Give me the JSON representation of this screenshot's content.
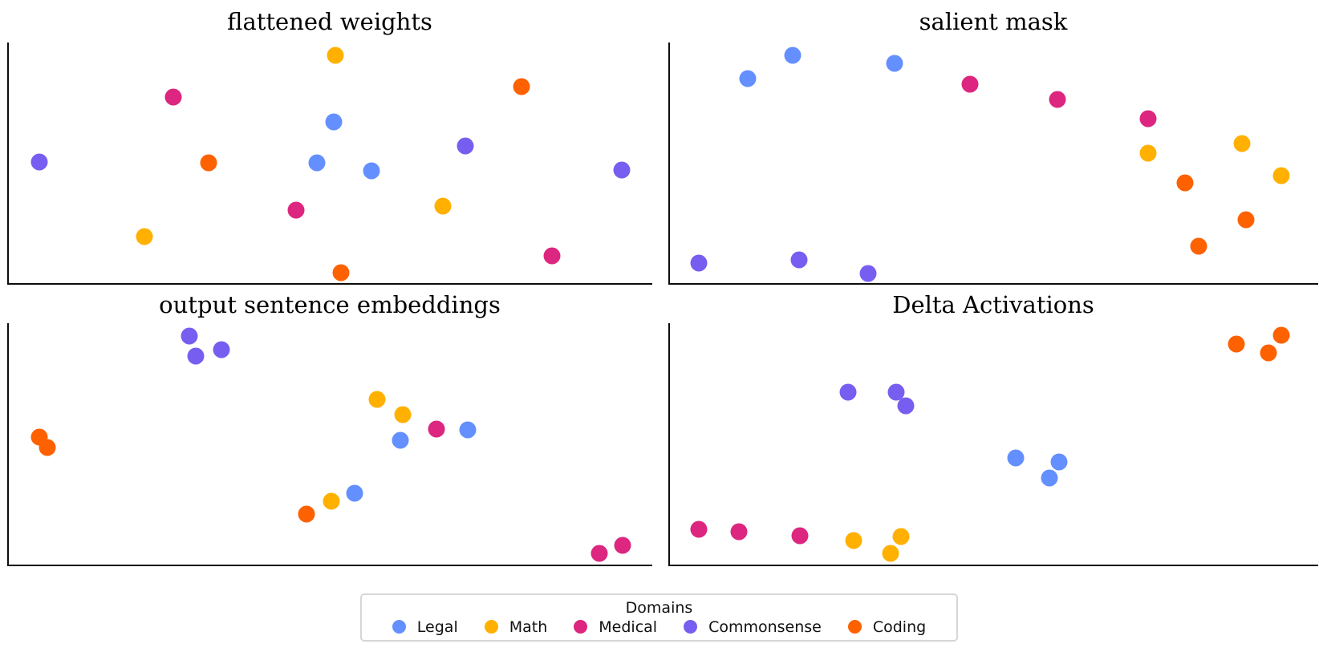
{
  "legend": {
    "title": "Domains",
    "items": [
      {
        "label": "Legal",
        "color": "#648FFF"
      },
      {
        "label": "Math",
        "color": "#FFB000"
      },
      {
        "label": "Medical",
        "color": "#DC267F"
      },
      {
        "label": "Commonsense",
        "color": "#785EF0"
      },
      {
        "label": "Coding",
        "color": "#FE6100"
      }
    ]
  },
  "chart_data": [
    {
      "type": "scatter",
      "title": "flattened weights",
      "axes": {
        "x_ticks": "none",
        "y_ticks": "none",
        "spines": [
          "left",
          "bottom"
        ],
        "grid": false,
        "units": "fraction of plot area; x rightward, y downward from top-left"
      },
      "series": [
        {
          "name": "Legal",
          "color": "#648FFF",
          "points": [
            [
              0.505,
              0.331
            ],
            [
              0.479,
              0.5
            ],
            [
              0.563,
              0.533
            ]
          ]
        },
        {
          "name": "Math",
          "color": "#FFB000",
          "points": [
            [
              0.507,
              0.053
            ],
            [
              0.674,
              0.679
            ],
            [
              0.211,
              0.808
            ]
          ]
        },
        {
          "name": "Medical",
          "color": "#DC267F",
          "points": [
            [
              0.255,
              0.228
            ],
            [
              0.447,
              0.695
            ],
            [
              0.844,
              0.887
            ]
          ]
        },
        {
          "name": "Commonsense",
          "color": "#785EF0",
          "points": [
            [
              0.709,
              0.43
            ],
            [
              0.047,
              0.497
            ],
            [
              0.953,
              0.53
            ]
          ]
        },
        {
          "name": "Coding",
          "color": "#FE6100",
          "points": [
            [
              0.797,
              0.182
            ],
            [
              0.311,
              0.5
            ],
            [
              0.516,
              0.957
            ]
          ]
        }
      ]
    },
    {
      "type": "scatter",
      "title": "salient mask",
      "axes": {
        "x_ticks": "none",
        "y_ticks": "none",
        "spines": [
          "left",
          "bottom"
        ],
        "grid": false,
        "units": "fraction of plot area; x rightward, y downward from top-left"
      },
      "series": [
        {
          "name": "Legal",
          "color": "#648FFF",
          "points": [
            [
              0.189,
              0.053
            ],
            [
              0.12,
              0.149
            ],
            [
              0.347,
              0.086
            ]
          ]
        },
        {
          "name": "Math",
          "color": "#FFB000",
          "points": [
            [
              0.738,
              0.46
            ],
            [
              0.883,
              0.421
            ],
            [
              0.943,
              0.553
            ]
          ]
        },
        {
          "name": "Medical",
          "color": "#DC267F",
          "points": [
            [
              0.463,
              0.172
            ],
            [
              0.598,
              0.235
            ],
            [
              0.738,
              0.315
            ]
          ]
        },
        {
          "name": "Commonsense",
          "color": "#785EF0",
          "points": [
            [
              0.044,
              0.917
            ],
            [
              0.199,
              0.904
            ],
            [
              0.306,
              0.96
            ]
          ]
        },
        {
          "name": "Coding",
          "color": "#FE6100",
          "points": [
            [
              0.795,
              0.583
            ],
            [
              0.889,
              0.735
            ],
            [
              0.816,
              0.848
            ]
          ]
        }
      ]
    },
    {
      "type": "scatter",
      "title": "output sentence embeddings",
      "axes": {
        "x_ticks": "none",
        "y_ticks": "none",
        "spines": [
          "left",
          "bottom"
        ],
        "grid": false,
        "units": "fraction of plot area; x rightward, y downward from top-left"
      },
      "series": [
        {
          "name": "Legal",
          "color": "#648FFF",
          "points": [
            [
              0.713,
              0.442
            ],
            [
              0.609,
              0.485
            ],
            [
              0.537,
              0.703
            ]
          ]
        },
        {
          "name": "Math",
          "color": "#FFB000",
          "points": [
            [
              0.572,
              0.317
            ],
            [
              0.612,
              0.38
            ],
            [
              0.501,
              0.739
            ]
          ]
        },
        {
          "name": "Medical",
          "color": "#DC267F",
          "points": [
            [
              0.664,
              0.439
            ],
            [
              0.918,
              0.954
            ],
            [
              0.954,
              0.921
            ]
          ]
        },
        {
          "name": "Commonsense",
          "color": "#785EF0",
          "points": [
            [
              0.28,
              0.053
            ],
            [
              0.291,
              0.135
            ],
            [
              0.331,
              0.109
            ]
          ]
        },
        {
          "name": "Coding",
          "color": "#FE6100",
          "points": [
            [
              0.047,
              0.472
            ],
            [
              0.06,
              0.515
            ],
            [
              0.463,
              0.792
            ]
          ]
        }
      ]
    },
    {
      "type": "scatter",
      "title": "Delta Activations",
      "axes": {
        "x_ticks": "none",
        "y_ticks": "none",
        "spines": [
          "left",
          "bottom"
        ],
        "grid": false,
        "units": "fraction of plot area; x rightward, y downward from top-left"
      },
      "series": [
        {
          "name": "Legal",
          "color": "#648FFF",
          "points": [
            [
              0.533,
              0.558
            ],
            [
              0.6,
              0.574
            ],
            [
              0.586,
              0.64
            ]
          ]
        },
        {
          "name": "Math",
          "color": "#FFB000",
          "points": [
            [
              0.284,
              0.901
            ],
            [
              0.356,
              0.885
            ],
            [
              0.34,
              0.954
            ]
          ]
        },
        {
          "name": "Medical",
          "color": "#DC267F",
          "points": [
            [
              0.044,
              0.855
            ],
            [
              0.106,
              0.865
            ],
            [
              0.201,
              0.881
            ]
          ]
        },
        {
          "name": "Commonsense",
          "color": "#785EF0",
          "points": [
            [
              0.275,
              0.287
            ],
            [
              0.349,
              0.287
            ],
            [
              0.364,
              0.343
            ]
          ]
        },
        {
          "name": "Coding",
          "color": "#FE6100",
          "points": [
            [
              0.874,
              0.086
            ],
            [
              0.943,
              0.05
            ],
            [
              0.923,
              0.122
            ]
          ]
        }
      ]
    }
  ]
}
